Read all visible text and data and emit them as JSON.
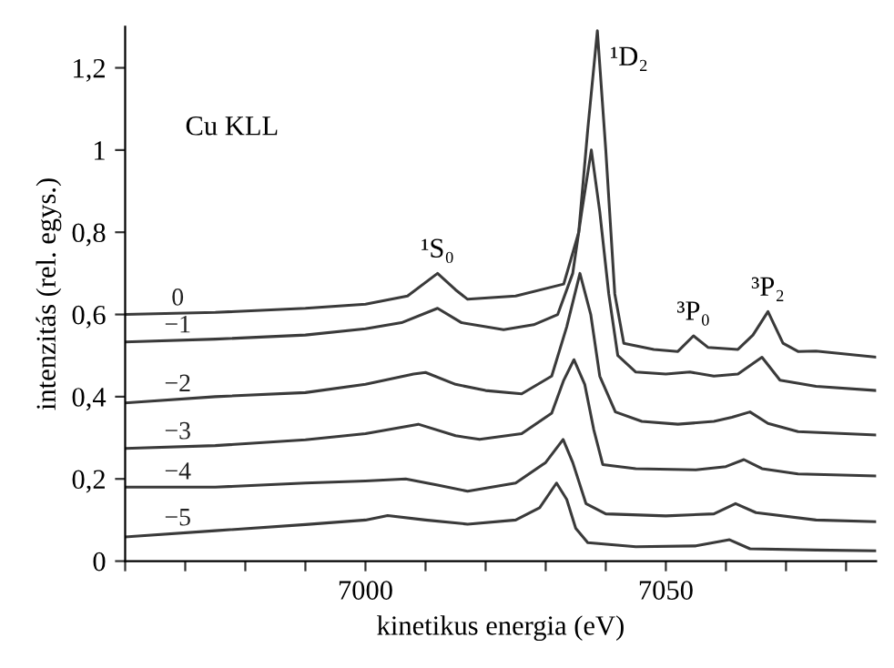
{
  "chart_data": {
    "type": "line",
    "xlabel": "kinetikus energia (eV)",
    "ylabel": "intenzitás (rel. egys.)",
    "xlim": [
      6960,
      7085
    ],
    "ylim": [
      0,
      1.3
    ],
    "xticks": [
      {
        "value": 6960,
        "label": null
      },
      {
        "value": 6970,
        "label": null
      },
      {
        "value": 6980,
        "label": null
      },
      {
        "value": 6990,
        "label": null
      },
      7000,
      {
        "value": 7010,
        "label": null
      },
      {
        "value": 7020,
        "label": null
      },
      {
        "value": 7030,
        "label": null
      },
      {
        "value": 7040,
        "label": null
      },
      7050,
      {
        "value": 7060,
        "label": null
      },
      {
        "value": 7070,
        "label": null
      },
      {
        "value": 7080,
        "label": null
      }
    ],
    "yticks": [
      0,
      {
        "value": 0.2,
        "label": "0,2"
      },
      {
        "value": 0.4,
        "label": "0,4"
      },
      {
        "value": 0.6,
        "label": "0,6"
      },
      {
        "value": 0.8,
        "label": "0,8"
      },
      1,
      {
        "value": 1.2,
        "label": "1,2"
      }
    ],
    "grid": false,
    "legend": false,
    "marker": "none",
    "line_style": "solid",
    "annotations": [
      "Cu KLL",
      {
        "text": "¹S₀",
        "x": 7012,
        "y": 0.7
      },
      {
        "text": "¹D₂",
        "x": 7038.6,
        "y": 1.29
      },
      {
        "text": "³P₀",
        "x": 7054.6,
        "y": 0.548
      },
      {
        "text": "³P₂",
        "x": 7067,
        "y": 0.607
      }
    ],
    "series": [
      {
        "name": "0",
        "color": "#3a3a3a",
        "x": [
          6960,
          6975,
          6990,
          7000,
          7007,
          7012,
          7015,
          7017,
          7025,
          7033,
          7035.5,
          7037,
          7038.6,
          7040,
          7041.5,
          7043,
          7048,
          7052,
          7054.6,
          7057,
          7062,
          7064.5,
          7067,
          7069.5,
          7072,
          7075,
          7085
        ],
        "values": [
          0.6,
          0.605,
          0.615,
          0.625,
          0.645,
          0.7,
          0.66,
          0.637,
          0.645,
          0.674,
          0.8,
          1.05,
          1.29,
          1.0,
          0.65,
          0.53,
          0.515,
          0.51,
          0.548,
          0.52,
          0.515,
          0.55,
          0.607,
          0.53,
          0.51,
          0.511,
          0.496
        ]
      },
      {
        "name": "−1",
        "color": "#3a3a3a",
        "x": [
          6960,
          6975,
          6990,
          7000,
          7006,
          7012,
          7016,
          7023,
          7028,
          7032,
          7034.5,
          7036,
          7037.6,
          7039,
          7040.5,
          7042,
          7045,
          7050,
          7054,
          7058,
          7062,
          7066,
          7069,
          7075,
          7085
        ],
        "values": [
          0.533,
          0.54,
          0.55,
          0.565,
          0.58,
          0.615,
          0.58,
          0.563,
          0.575,
          0.6,
          0.7,
          0.85,
          1.0,
          0.85,
          0.65,
          0.5,
          0.46,
          0.455,
          0.46,
          0.45,
          0.455,
          0.496,
          0.44,
          0.425,
          0.415
        ]
      },
      {
        "name": "−2",
        "color": "#3a3a3a",
        "x": [
          6960,
          6975,
          6990,
          7000,
          7008,
          7010,
          7015,
          7020,
          7026,
          7031,
          7033.5,
          7035.7,
          7037.5,
          7039,
          7041.6,
          7046,
          7052,
          7058,
          7061,
          7064,
          7067,
          7072,
          7085
        ],
        "values": [
          0.385,
          0.4,
          0.41,
          0.43,
          0.455,
          0.459,
          0.43,
          0.415,
          0.407,
          0.45,
          0.57,
          0.7,
          0.6,
          0.45,
          0.363,
          0.34,
          0.333,
          0.34,
          0.35,
          0.363,
          0.335,
          0.315,
          0.307
        ]
      },
      {
        "name": "−3",
        "color": "#3a3a3a",
        "x": [
          6960,
          6975,
          6990,
          7000,
          7008.8,
          7015,
          7019,
          7026,
          7031,
          7033,
          7034.7,
          7036.5,
          7038,
          7039.5,
          7045,
          7055,
          7060,
          7063,
          7066,
          7072,
          7085
        ],
        "values": [
          0.274,
          0.281,
          0.295,
          0.31,
          0.333,
          0.305,
          0.296,
          0.31,
          0.36,
          0.44,
          0.49,
          0.43,
          0.32,
          0.235,
          0.225,
          0.222,
          0.23,
          0.247,
          0.225,
          0.212,
          0.207
        ]
      },
      {
        "name": "−4",
        "color": "#3a3a3a",
        "x": [
          6960,
          6975,
          6990,
          7000,
          7006.7,
          7012,
          7017,
          7025,
          7030,
          7032.9,
          7034.5,
          7036.7,
          7040,
          7050,
          7058,
          7061.6,
          7065,
          7075,
          7085
        ],
        "values": [
          0.18,
          0.18,
          0.19,
          0.195,
          0.2,
          0.185,
          0.17,
          0.19,
          0.24,
          0.296,
          0.24,
          0.14,
          0.115,
          0.11,
          0.115,
          0.14,
          0.118,
          0.1,
          0.096
        ]
      },
      {
        "name": "−5",
        "color": "#3a3a3a",
        "x": [
          6960,
          6975,
          6990,
          7000,
          7003.7,
          7010,
          7017,
          7025,
          7029,
          7031.8,
          7033.5,
          7035,
          7037,
          7045,
          7055,
          7060.6,
          7064,
          7075,
          7085
        ],
        "values": [
          0.059,
          0.074,
          0.089,
          0.1,
          0.111,
          0.1,
          0.09,
          0.1,
          0.13,
          0.19,
          0.15,
          0.08,
          0.045,
          0.035,
          0.037,
          0.052,
          0.03,
          0.027,
          0.025
        ]
      }
    ]
  }
}
